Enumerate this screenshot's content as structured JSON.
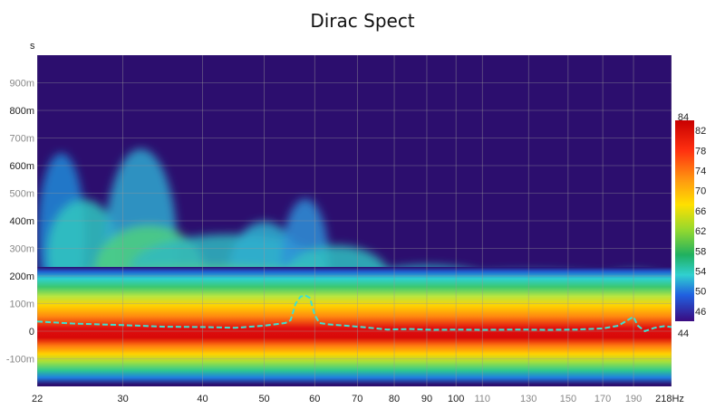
{
  "chart_data": {
    "type": "heatmap",
    "title": "Dirac Spect",
    "ylabel": "s",
    "xlabel": "Hz",
    "x_scale": "log",
    "xlim": [
      22,
      218
    ],
    "ylim": [
      -0.2,
      1.0
    ],
    "grid": true,
    "y_ticks": [
      {
        "label": "900m",
        "value": 0.9,
        "major": false
      },
      {
        "label": "800m",
        "value": 0.8,
        "major": true
      },
      {
        "label": "700m",
        "value": 0.7,
        "major": false
      },
      {
        "label": "600m",
        "value": 0.6,
        "major": true
      },
      {
        "label": "500m",
        "value": 0.5,
        "major": false
      },
      {
        "label": "400m",
        "value": 0.4,
        "major": true
      },
      {
        "label": "300m",
        "value": 0.3,
        "major": false
      },
      {
        "label": "200m",
        "value": 0.2,
        "major": true
      },
      {
        "label": "100m",
        "value": 0.1,
        "major": false
      },
      {
        "label": "0",
        "value": 0.0,
        "major": true
      },
      {
        "label": "-100m",
        "value": -0.1,
        "major": false
      }
    ],
    "x_ticks": [
      {
        "label": "22",
        "value": 22,
        "major": true
      },
      {
        "label": "30",
        "value": 30,
        "major": true
      },
      {
        "label": "40",
        "value": 40,
        "major": true
      },
      {
        "label": "50",
        "value": 50,
        "major": true
      },
      {
        "label": "60",
        "value": 60,
        "major": true
      },
      {
        "label": "70",
        "value": 70,
        "major": true
      },
      {
        "label": "80",
        "value": 80,
        "major": true
      },
      {
        "label": "90",
        "value": 90,
        "major": true
      },
      {
        "label": "100",
        "value": 100,
        "major": true
      },
      {
        "label": "110",
        "value": 110,
        "major": false
      },
      {
        "label": "130",
        "value": 130,
        "major": false
      },
      {
        "label": "150",
        "value": 150,
        "major": false
      },
      {
        "label": "170",
        "value": 170,
        "major": false
      },
      {
        "label": "190",
        "value": 190,
        "major": false
      },
      {
        "label": "218Hz",
        "value": 218,
        "major": true
      }
    ],
    "colorbar": {
      "min": 44,
      "max": 84,
      "labels": [
        "84",
        "82",
        "78",
        "74",
        "70",
        "66",
        "62",
        "58",
        "54",
        "50",
        "46",
        "44"
      ],
      "values": [
        84,
        82,
        78,
        74,
        70,
        66,
        62,
        58,
        54,
        50,
        46,
        44
      ]
    },
    "series": [
      {
        "type": "line",
        "style": "dashed",
        "color": "#3ee0d0",
        "points": [
          [
            22,
            0.035
          ],
          [
            25,
            0.028
          ],
          [
            30,
            0.022
          ],
          [
            35,
            0.016
          ],
          [
            40,
            0.015
          ],
          [
            45,
            0.012
          ],
          [
            50,
            0.02
          ],
          [
            54,
            0.03
          ],
          [
            55,
            0.04
          ],
          [
            56,
            0.1
          ],
          [
            57,
            0.125
          ],
          [
            58,
            0.13
          ],
          [
            59,
            0.12
          ],
          [
            60,
            0.06
          ],
          [
            61,
            0.03
          ],
          [
            63,
            0.025
          ],
          [
            67,
            0.02
          ],
          [
            72,
            0.014
          ],
          [
            78,
            0.006
          ],
          [
            85,
            0.008
          ],
          [
            92,
            0.005
          ],
          [
            100,
            0.006
          ],
          [
            110,
            0.005
          ],
          [
            125,
            0.006
          ],
          [
            140,
            0.005
          ],
          [
            155,
            0.006
          ],
          [
            170,
            0.01
          ],
          [
            180,
            0.02
          ],
          [
            186,
            0.04
          ],
          [
            190,
            0.052
          ],
          [
            193,
            0.02
          ],
          [
            198,
            0.0
          ],
          [
            205,
            0.012
          ],
          [
            212,
            0.018
          ],
          [
            218,
            0.015
          ]
        ]
      }
    ],
    "colors": {
      "background": "#2c0e6e",
      "grid": "#999999"
    }
  }
}
